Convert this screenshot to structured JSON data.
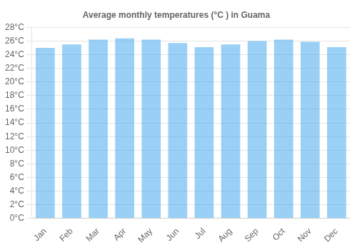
{
  "chart_data": {
    "type": "bar",
    "title": "Average monthly temperatures (°C ) in Guama",
    "categories": [
      "Jan",
      "Feb",
      "Mar",
      "Apr",
      "May",
      "Jun",
      "Jul",
      "Aug",
      "Sep",
      "Oct",
      "Nov",
      "Dec"
    ],
    "values": [
      25.0,
      25.5,
      26.2,
      26.4,
      26.2,
      25.7,
      25.1,
      25.5,
      26.0,
      26.2,
      25.9,
      25.1
    ],
    "ylim": [
      0,
      28
    ],
    "yticks": [
      {
        "value": 0,
        "label": "0°C"
      },
      {
        "value": 2,
        "label": "2°C"
      },
      {
        "value": 4,
        "label": "4°C"
      },
      {
        "value": 6,
        "label": "6°C"
      },
      {
        "value": 8,
        "label": "8°C"
      },
      {
        "value": 10,
        "label": "10°C"
      },
      {
        "value": 12,
        "label": "12°C"
      },
      {
        "value": 14,
        "label": "14°C"
      },
      {
        "value": 16,
        "label": "16°C"
      },
      {
        "value": 18,
        "label": "18°C"
      },
      {
        "value": 20,
        "label": "20°C"
      },
      {
        "value": 22,
        "label": "22°C"
      },
      {
        "value": 24,
        "label": "24°C"
      },
      {
        "value": 26,
        "label": "26°C"
      },
      {
        "value": 28,
        "label": "28°C"
      }
    ],
    "grid": true
  }
}
